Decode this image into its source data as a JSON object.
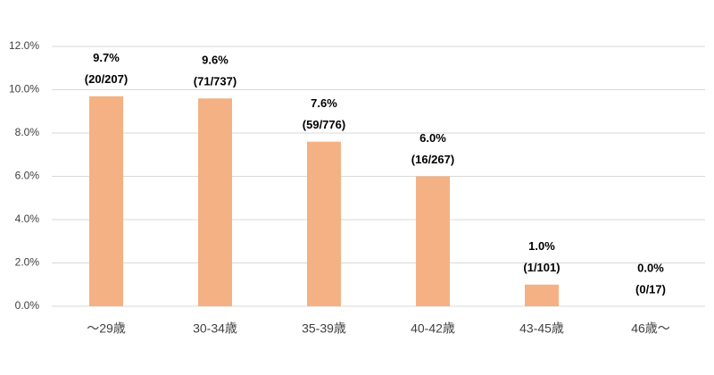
{
  "chart_data": {
    "type": "bar",
    "categories": [
      "～29歳",
      "30-34歳",
      "35-39歳",
      "40-42歳",
      "43-45歳",
      "46歳～"
    ],
    "values": [
      9.7,
      9.6,
      7.6,
      6.0,
      1.0,
      0.0
    ],
    "value_labels": [
      "9.7%",
      "9.6%",
      "7.6%",
      "6.0%",
      "1.0%",
      "0.0%"
    ],
    "counts": [
      "(20/207)",
      "(71/737)",
      "(59/776)",
      "(16/267)",
      "(1/101)",
      "(0/17)"
    ],
    "color": "#f4b183",
    "ylim": [
      0,
      12
    ],
    "yticks": [
      {
        "value": 0,
        "label": "0.0%"
      },
      {
        "value": 2,
        "label": "2.0%"
      },
      {
        "value": 4,
        "label": "4.0%"
      },
      {
        "value": 6,
        "label": "6.0%"
      },
      {
        "value": 8,
        "label": "8.0%"
      },
      {
        "value": 10,
        "label": "10.0%"
      },
      {
        "value": 12,
        "label": "12.0%"
      }
    ],
    "grid": true
  }
}
